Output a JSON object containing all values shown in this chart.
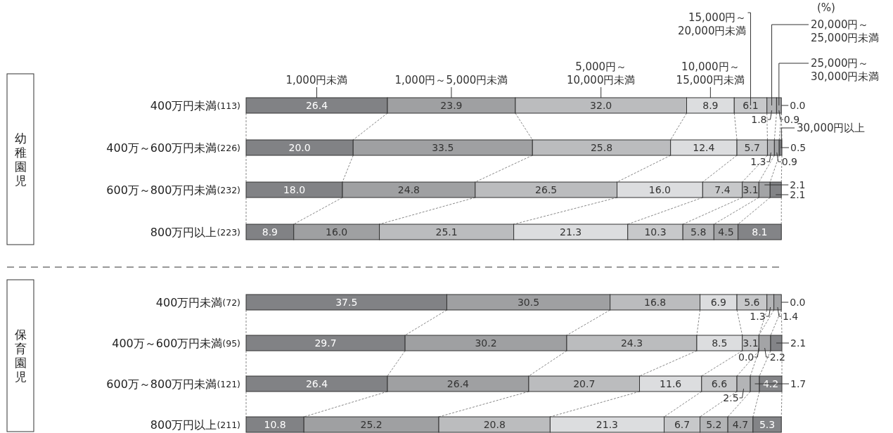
{
  "chart_data": [
    {
      "type": "bar",
      "orientation": "horizontal",
      "stacked": true,
      "legend": "top",
      "tick_labels": "y",
      "ylabel": "幼稚園児",
      "annotations": [
        "(%)"
      ],
      "categories": [
        "400万円未満(113)",
        "400万～600万円未満(226)",
        "600万～800万円未満(232)",
        "800万円以上(223)"
      ],
      "series": [
        {
          "name": "1,000円未満",
          "color": "#818285",
          "values": [
            26.4,
            20.0,
            18.0,
            8.9
          ],
          "value_labels": [
            "26.4",
            "20.0",
            "18.0",
            "8.9"
          ]
        },
        {
          "name": "1,000円～5,000円未満",
          "color": "#9fa0a2",
          "values": [
            23.9,
            33.5,
            24.8,
            16.0
          ],
          "value_labels": [
            "23.9",
            "33.5",
            "24.8",
            "16.0"
          ]
        },
        {
          "name": "5,000円～10,000円未満",
          "color": "#bbbcbe",
          "values": [
            32.0,
            25.8,
            26.5,
            25.1
          ],
          "value_labels": [
            "32.0",
            "25.8",
            "26.5",
            "25.1"
          ]
        },
        {
          "name": "10,000円～15,000円未満",
          "color": "#dcdddf",
          "values": [
            8.9,
            12.4,
            16.0,
            21.3
          ],
          "value_labels": [
            "8.9",
            "12.4",
            "16.0",
            "21.3"
          ]
        },
        {
          "name": "15,000円～20,000円未満",
          "color": "#c7c8ca",
          "values": [
            6.1,
            5.7,
            7.4,
            10.3
          ],
          "value_labels": [
            "6.1",
            "5.7",
            "7.4",
            "10.3"
          ]
        },
        {
          "name": "20,000円～25,000円未満",
          "color": "#b3b4b6",
          "values": [
            1.8,
            1.3,
            3.1,
            5.8
          ],
          "value_labels": [
            "1.8",
            "1.3",
            "3.1",
            "5.8"
          ]
        },
        {
          "name": "25,000円～30,000円未満",
          "color": "#a3a4a6",
          "values": [
            0.9,
            0.9,
            2.1,
            4.5
          ],
          "value_labels": [
            "0.9",
            "0.9",
            "2.1",
            "4.5"
          ]
        },
        {
          "name": "30,000円以上",
          "color": "#838487",
          "values": [
            0.0,
            0.5,
            2.1,
            8.1
          ],
          "value_labels": [
            "0.0",
            "0.5",
            "2.1",
            "8.1"
          ]
        }
      ]
    },
    {
      "type": "bar",
      "orientation": "horizontal",
      "stacked": true,
      "tick_labels": "y",
      "ylabel": "保育園児",
      "categories": [
        "400万円未満(72)",
        "400万～600万円未満(95)",
        "600万～800万円未満(121)",
        "800万円以上(211)"
      ],
      "series": [
        {
          "color": "#818285",
          "values": [
            37.5,
            29.7,
            26.4,
            10.8
          ],
          "value_labels": [
            "37.5",
            "29.7",
            "26.4",
            "10.8"
          ]
        },
        {
          "color": "#9fa0a2",
          "values": [
            30.5,
            30.2,
            26.4,
            25.2
          ],
          "value_labels": [
            "30.5",
            "30.2",
            "26.4",
            "25.2"
          ]
        },
        {
          "color": "#bbbcbe",
          "values": [
            16.8,
            24.3,
            20.7,
            20.8
          ],
          "value_labels": [
            "16.8",
            "24.3",
            "20.7",
            "20.8"
          ]
        },
        {
          "color": "#dcdddf",
          "values": [
            6.9,
            8.5,
            11.6,
            21.3
          ],
          "value_labels": [
            "6.9",
            "8.5",
            "11.6",
            "21.3"
          ]
        },
        {
          "color": "#c7c8ca",
          "values": [
            5.6,
            3.1,
            6.6,
            6.7
          ],
          "value_labels": [
            "5.6",
            "3.1",
            "6.6",
            "6.7"
          ]
        },
        {
          "color": "#b3b4b6",
          "values": [
            1.3,
            0.0,
            2.5,
            5.2
          ],
          "value_labels": [
            "1.3",
            "0.0",
            "2.5",
            "5.2"
          ]
        },
        {
          "color": "#a3a4a6",
          "values": [
            1.4,
            2.2,
            1.7,
            4.7
          ],
          "value_labels": [
            "1.4",
            "2.2",
            "1.7",
            "4.7"
          ]
        },
        {
          "color": "#838487",
          "values": [
            0.0,
            2.1,
            4.2,
            5.3
          ],
          "value_labels": [
            "0.0",
            "2.1",
            "4.2",
            "5.3"
          ]
        }
      ]
    }
  ]
}
